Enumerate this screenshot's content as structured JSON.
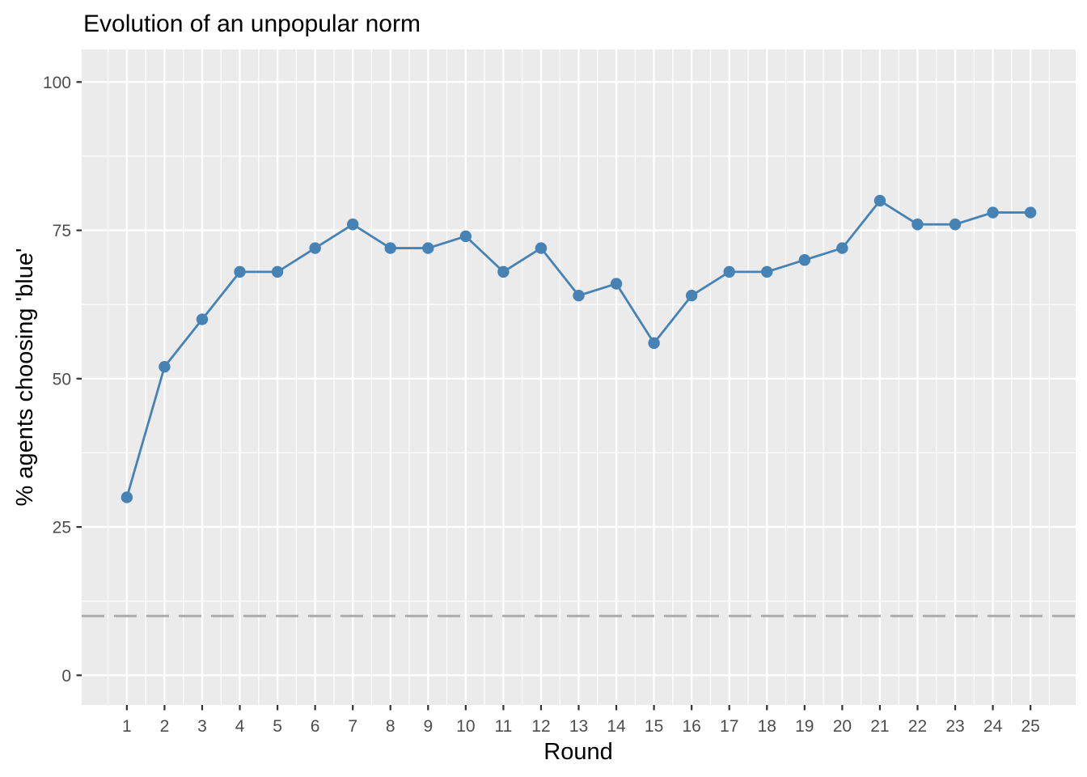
{
  "chart_data": {
    "type": "line",
    "title": "Evolution of an unpopular norm",
    "xlabel": "Round",
    "ylabel": "% agents choosing 'blue'",
    "x": [
      1,
      2,
      3,
      4,
      5,
      6,
      7,
      8,
      9,
      10,
      11,
      12,
      13,
      14,
      15,
      16,
      17,
      18,
      19,
      20,
      21,
      22,
      23,
      24,
      25
    ],
    "series": [
      {
        "name": "% agents choosing 'blue'",
        "values": [
          30,
          52,
          60,
          68,
          68,
          72,
          76,
          72,
          72,
          74,
          68,
          72,
          64,
          66,
          56,
          64,
          68,
          68,
          70,
          72,
          80,
          76,
          76,
          78,
          78
        ]
      }
    ],
    "xticks": [
      1,
      2,
      3,
      4,
      5,
      6,
      7,
      8,
      9,
      10,
      11,
      12,
      13,
      14,
      15,
      16,
      17,
      18,
      19,
      20,
      21,
      22,
      23,
      24,
      25
    ],
    "yticks": [
      0,
      25,
      50,
      75,
      100
    ],
    "xlim": [
      -0.2,
      26.2
    ],
    "ylim": [
      -5,
      105.5
    ],
    "grid": true,
    "legend": "none",
    "reference_line": {
      "y": 10,
      "style": "dashed",
      "color": "#a9a9a9"
    },
    "colors": {
      "series": "#4682b4",
      "panel_background": "#ebebeb",
      "gridline": "#ffffff",
      "tick_label": "#4d4d4d",
      "tick_mark": "#333333",
      "axis_title": "#000000"
    }
  }
}
